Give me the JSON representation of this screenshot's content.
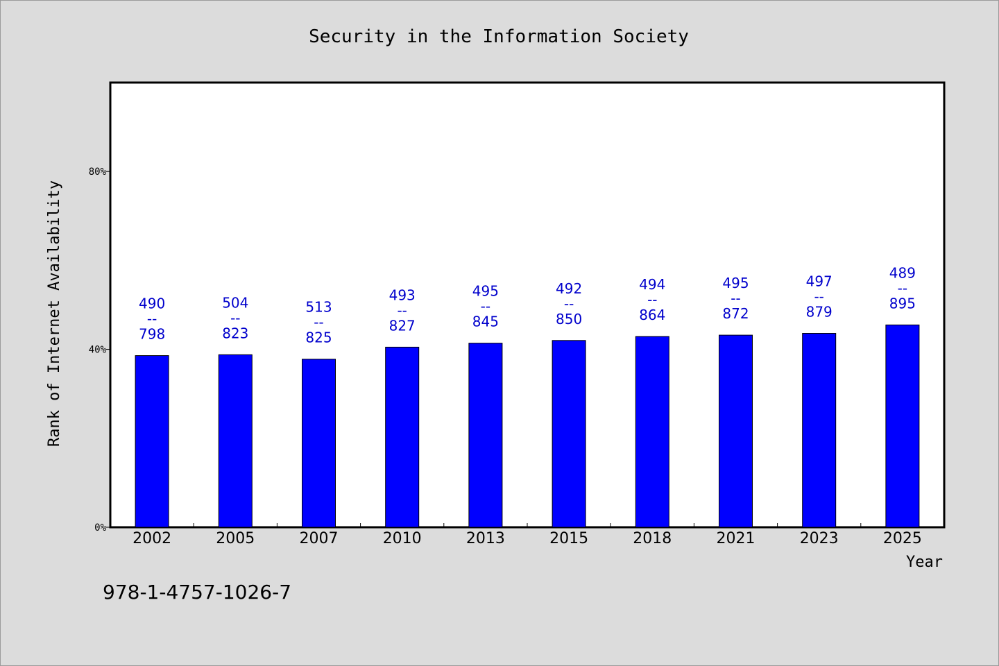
{
  "chart_data": {
    "type": "bar",
    "title": "Security in the Information Society",
    "xlabel": "Year",
    "ylabel": "Rank of Internet Availability",
    "ylim": [
      0,
      100
    ],
    "yticks": [
      {
        "value": 0,
        "label": "0%"
      },
      {
        "value": 40,
        "label": "40%"
      },
      {
        "value": 80,
        "label": "80%"
      }
    ],
    "categories": [
      "2002",
      "2005",
      "2007",
      "2010",
      "2013",
      "2015",
      "2018",
      "2021",
      "2023",
      "2025"
    ],
    "values": [
      38.6,
      38.8,
      37.8,
      40.5,
      41.4,
      42.0,
      42.9,
      43.2,
      43.6,
      45.5
    ],
    "labels_top": [
      "490",
      "504",
      "513",
      "493",
      "495",
      "492",
      "494",
      "495",
      "497",
      "489"
    ],
    "labels_bottom": [
      "798",
      "823",
      "825",
      "827",
      "845",
      "850",
      "864",
      "872",
      "879",
      "895"
    ],
    "label_separator": "--",
    "bar_color": "#0000ff",
    "label_color": "#0000cc",
    "grid": false,
    "legend": "none"
  },
  "footnote": "978-1-4757-1026-7"
}
